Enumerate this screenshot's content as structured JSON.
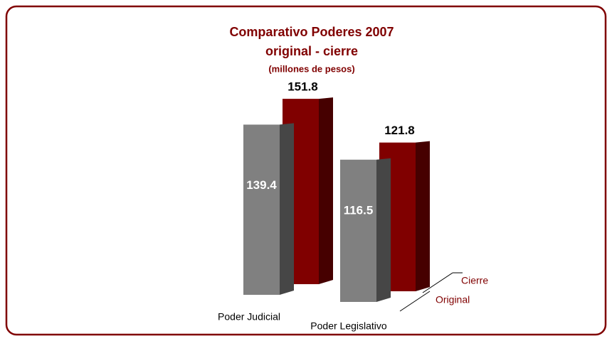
{
  "chart_data": {
    "type": "bar3d",
    "title": "Comparativo Poderes 2007",
    "subtitle": "original - cierre",
    "unit_label": "(millones de pesos)",
    "categories": [
      "Poder Judicial",
      "Poder Legislativo"
    ],
    "series": [
      {
        "name": "Original",
        "color": "#808080",
        "values": [
          139.4,
          116.5
        ]
      },
      {
        "name": "Cierre",
        "color": "#800000",
        "values": [
          151.8,
          121.8
        ]
      }
    ],
    "ylim": [
      0,
      160
    ]
  }
}
